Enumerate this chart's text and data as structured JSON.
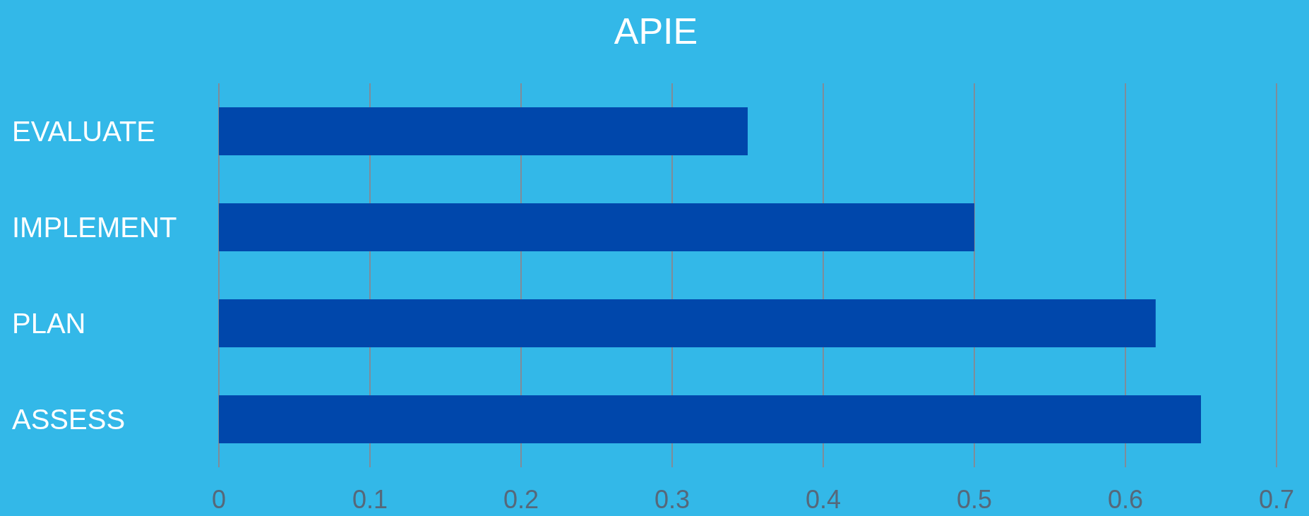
{
  "chart_data": {
    "type": "bar",
    "title": "APIE",
    "orientation": "horizontal",
    "categories": [
      "EVALUATE",
      "IMPLEMENT",
      "PLAN",
      "ASSESS"
    ],
    "values": [
      0.35,
      0.5,
      0.62,
      0.65
    ],
    "color": "#0047ab",
    "xlim": [
      0,
      0.7
    ],
    "xticks": [
      0,
      0.1,
      0.2,
      0.3,
      0.4,
      0.5,
      0.6,
      0.7
    ],
    "grid": "x"
  }
}
